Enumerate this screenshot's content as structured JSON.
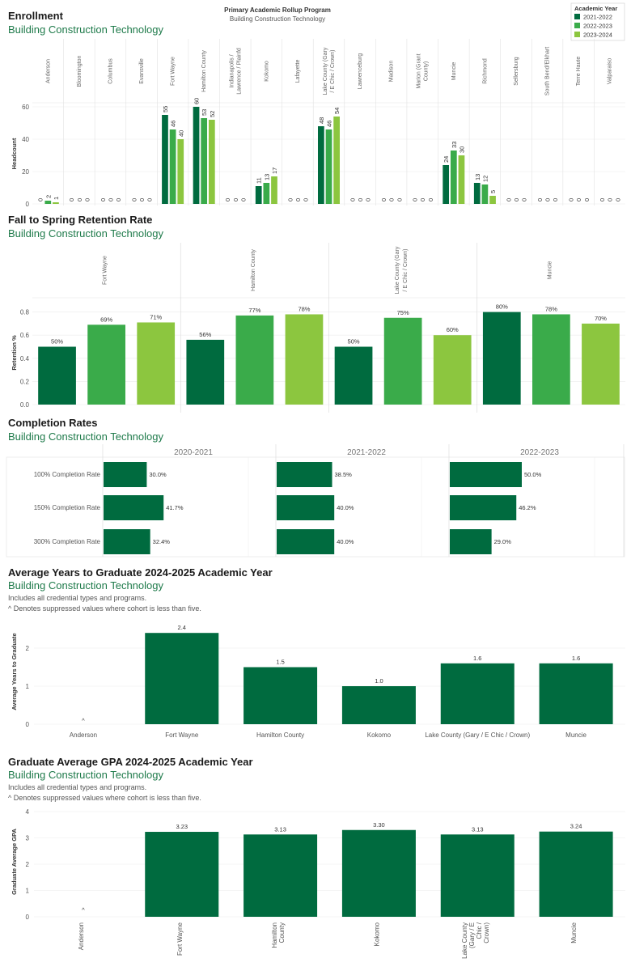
{
  "colors": {
    "y2021": "#006b3f",
    "y2022": "#3aab4a",
    "y2023": "#8cc63f",
    "bar": "#006b3f",
    "text_green": "#1e7a4a"
  },
  "program_header": {
    "title": "Primary Academic Rollup Program",
    "subtitle": "Building Construction Technology"
  },
  "legend": {
    "title": "Academic Year",
    "items": [
      "2021-2022",
      "2022-2023",
      "2023-2024"
    ]
  },
  "enrollment": {
    "title": "Enrollment",
    "subtitle": "Building Construction Technology",
    "chart_data": {
      "type": "bar",
      "ylabel": "Headcount",
      "ylim": [
        0,
        65
      ],
      "yticks": [
        0,
        20,
        40,
        60
      ],
      "categories": [
        "Anderson",
        "Bloomington",
        "Columbus",
        "Evansville",
        "Fort Wayne",
        "Hamilton County",
        "Indianapolis / Lawrence / Plainfd",
        "Kokomo",
        "Lafayette",
        "Lake County (Gary / E Chic / Crown)",
        "Lawrenceburg",
        "Madison",
        "Marion (Grant County)",
        "Muncie",
        "Richmond",
        "Sellersburg",
        "South Bend/Elkhart",
        "Terre Haute",
        "Valparaiso"
      ],
      "series": [
        {
          "name": "2021-2022",
          "values": [
            0,
            0,
            0,
            0,
            55,
            60,
            0,
            11,
            0,
            48,
            0,
            0,
            0,
            24,
            13,
            0,
            0,
            0,
            0
          ]
        },
        {
          "name": "2022-2023",
          "values": [
            2,
            0,
            0,
            0,
            46,
            53,
            0,
            13,
            0,
            46,
            0,
            0,
            0,
            33,
            12,
            0,
            0,
            0,
            0
          ]
        },
        {
          "name": "2023-2024",
          "values": [
            1,
            0,
            0,
            0,
            40,
            52,
            0,
            17,
            0,
            54,
            0,
            0,
            0,
            30,
            5,
            0,
            0,
            0,
            0
          ]
        }
      ]
    }
  },
  "retention": {
    "title": "Fall to Spring Retention Rate",
    "subtitle": "Building Construction Technology",
    "chart_data": {
      "type": "bar",
      "ylabel": "Retention %",
      "ylim": [
        0,
        0.9
      ],
      "yticks": [
        "0.0",
        "0.2",
        "0.4",
        "0.6",
        "0.8"
      ],
      "categories": [
        "Fort Wayne",
        "Hamilton County",
        "Lake County (Gary / E Chic / Crown)",
        "Muncie"
      ],
      "series": [
        {
          "name": "2021-2022",
          "values": [
            0.5,
            0.56,
            0.5,
            0.8
          ],
          "labels": [
            "50%",
            "56%",
            "50%",
            "80%"
          ]
        },
        {
          "name": "2022-2023",
          "values": [
            0.69,
            0.77,
            0.75,
            0.78
          ],
          "labels": [
            "69%",
            "77%",
            "75%",
            "78%"
          ]
        },
        {
          "name": "2023-2024",
          "values": [
            0.71,
            0.78,
            0.6,
            0.7
          ],
          "labels": [
            "71%",
            "78%",
            "60%",
            "70%"
          ]
        }
      ]
    }
  },
  "completion": {
    "title": "Completion Rates",
    "subtitle": "Building Construction Technology",
    "chart_data": {
      "type": "bar",
      "orientation": "horizontal",
      "panels": [
        "2020-2021",
        "2021-2022",
        "2022-2023"
      ],
      "rows": [
        "100% Completion Rate",
        "150% Completion Rate",
        "300% Completion Rate"
      ],
      "values": [
        [
          30.0,
          41.7,
          32.4
        ],
        [
          38.5,
          40.0,
          40.0
        ],
        [
          50.0,
          46.2,
          29.0
        ]
      ],
      "labels": [
        [
          "30.0%",
          "41.7%",
          "32.4%"
        ],
        [
          "38.5%",
          "40.0%",
          "40.0%"
        ],
        [
          "50.0%",
          "46.2%",
          "29.0%"
        ]
      ]
    }
  },
  "years_to_grad": {
    "title": "Average Years to Graduate 2024-2025 Academic Year",
    "subtitle": "Building Construction Technology",
    "note1": "Includes all credential types and programs.",
    "note2": "^ Denotes suppressed values where cohort is less than five.",
    "chart_data": {
      "type": "bar",
      "ylabel": "Average Years to Graduate",
      "ylim": [
        0,
        2.6
      ],
      "yticks": [
        "0",
        "1",
        "2"
      ],
      "categories": [
        "Anderson",
        "Fort Wayne",
        "Hamilton County",
        "Kokomo",
        "Lake County (Gary / E Chic / Crown)",
        "Muncie"
      ],
      "values": [
        null,
        2.4,
        1.5,
        1.0,
        1.6,
        1.6
      ],
      "labels": [
        "^",
        "2.4",
        "1.5",
        "1.0",
        "1.6",
        "1.6"
      ]
    }
  },
  "gpa": {
    "title": "Graduate Average GPA 2024-2025 Academic Year",
    "subtitle": "Building Construction Technology",
    "note1": "Includes all credential types and programs.",
    "note2": "^ Denotes suppressed values where cohort is less than five.",
    "chart_data": {
      "type": "bar",
      "ylabel": "Graduate Average GPA",
      "ylim": [
        0,
        4
      ],
      "yticks": [
        "0",
        "1",
        "2",
        "3",
        "4"
      ],
      "categories": [
        "Anderson",
        "Fort Wayne",
        "Hamilton County",
        "Kokomo",
        "Lake County (Gary / E Chic / Crown)",
        "Muncie"
      ],
      "values": [
        null,
        3.23,
        3.13,
        3.3,
        3.13,
        3.24
      ],
      "labels": [
        "^",
        "3.23",
        "3.13",
        "3.30",
        "3.13",
        "3.24"
      ]
    }
  }
}
